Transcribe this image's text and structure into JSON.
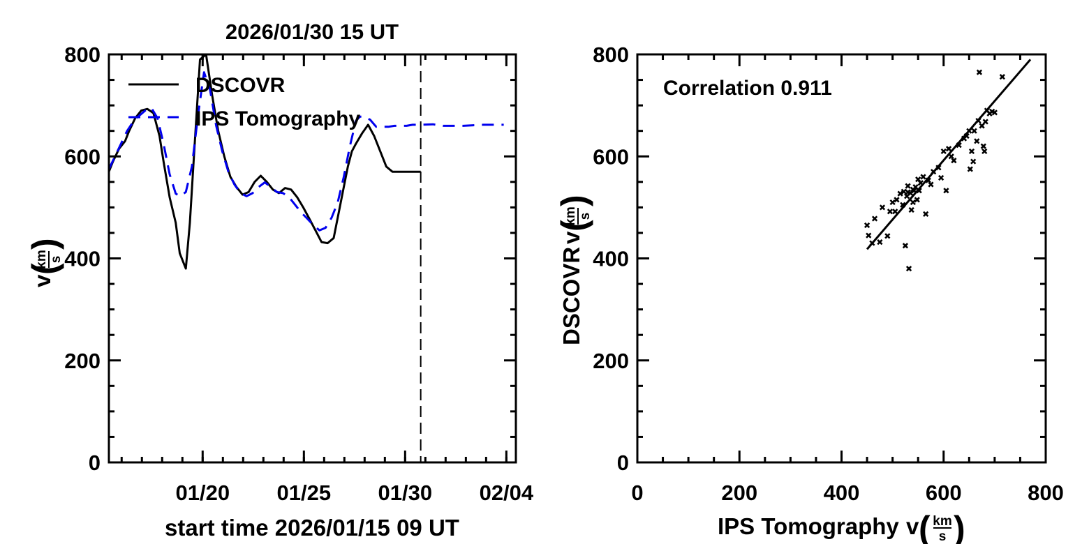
{
  "chart_data": [
    {
      "type": "line",
      "title": "2026/01/30 15 UT",
      "xlabel": "start time 2026/01/15 09 UT",
      "ylabel": "v",
      "ylabel_unit_num": "km",
      "ylabel_unit_den": "s",
      "ylim": [
        0,
        800
      ],
      "xlim_days": [
        0,
        20.1
      ],
      "y_ticks": [
        "0",
        "200",
        "400",
        "600",
        "800"
      ],
      "y_tick_values": [
        0,
        200,
        400,
        600,
        800
      ],
      "x_ticks": [
        "01/20",
        "01/25",
        "01/30",
        "02/04"
      ],
      "x_tick_days": [
        4.63,
        9.63,
        14.63,
        19.63
      ],
      "current_time_day": 15.4,
      "legend": [
        "DSCOVR",
        "IPS Tomography"
      ],
      "colors": {
        "DSCOVR": "#000000",
        "IPS Tomography": "#0000ee"
      },
      "series": [
        {
          "name": "DSCOVR",
          "x": [
            0,
            0.2,
            0.5,
            0.8,
            1.0,
            1.3,
            1.6,
            1.9,
            2.2,
            2.5,
            2.7,
            3.0,
            3.3,
            3.5,
            3.8,
            4.0,
            4.2,
            4.5,
            4.8,
            5.1,
            5.4,
            5.7,
            6.0,
            6.3,
            6.6,
            6.9,
            7.2,
            7.5,
            7.8,
            8.1,
            8.4,
            8.7,
            9.0,
            9.3,
            9.6,
            9.9,
            10.2,
            10.5,
            10.8,
            11.1,
            11.4,
            11.6,
            11.8,
            12.0,
            12.2,
            12.5,
            12.8,
            13.1,
            13.4,
            13.7,
            14.0,
            14.3,
            14.6,
            14.9,
            15.2,
            15.4
          ],
          "y": [
            570,
            590,
            615,
            630,
            650,
            675,
            690,
            693,
            685,
            640,
            590,
            520,
            470,
            410,
            380,
            470,
            600,
            790,
            800,
            720,
            650,
            600,
            560,
            540,
            525,
            530,
            550,
            562,
            550,
            535,
            528,
            538,
            535,
            520,
            500,
            478,
            455,
            432,
            430,
            440,
            500,
            540,
            580,
            610,
            625,
            645,
            662,
            640,
            610,
            580,
            570,
            570,
            570,
            570,
            570,
            570
          ]
        },
        {
          "name": "IPS Tomography",
          "x": [
            0,
            0.3,
            0.6,
            0.9,
            1.2,
            1.5,
            1.8,
            2.1,
            2.4,
            2.7,
            3.0,
            3.3,
            3.5,
            3.8,
            4.1,
            4.4,
            4.7,
            5.0,
            5.3,
            5.6,
            5.9,
            6.2,
            6.5,
            6.8,
            7.1,
            7.4,
            7.7,
            8.0,
            8.3,
            8.6,
            8.9,
            9.2,
            9.5,
            9.8,
            10.1,
            10.4,
            10.7,
            11.0,
            11.3,
            11.6,
            11.9,
            12.2,
            12.4,
            12.6,
            12.9,
            13.2,
            13.5,
            13.8,
            14.1,
            14.4,
            14.7,
            15.0,
            15.4,
            16.0,
            16.5,
            17.0,
            17.5,
            18.0,
            18.5,
            19.0,
            19.5
          ],
          "y": [
            575,
            600,
            625,
            650,
            668,
            680,
            690,
            695,
            675,
            625,
            565,
            527,
            522,
            530,
            580,
            680,
            765,
            730,
            660,
            610,
            570,
            545,
            528,
            522,
            528,
            540,
            549,
            540,
            530,
            528,
            520,
            505,
            490,
            478,
            465,
            455,
            460,
            480,
            510,
            560,
            620,
            670,
            678,
            678,
            672,
            658,
            658,
            658,
            660,
            660,
            660,
            662,
            662,
            663,
            660,
            660,
            660,
            661,
            662,
            662,
            662
          ]
        }
      ]
    },
    {
      "type": "scatter",
      "annotation": "Correlation 0.911",
      "xlabel": "IPS Tomography",
      "ylabel": "DSCOVR",
      "unit_num": "km",
      "unit_den": "s",
      "xlim": [
        0,
        800
      ],
      "ylim": [
        0,
        800
      ],
      "x_ticks": [
        "0",
        "200",
        "400",
        "600",
        "800"
      ],
      "y_ticks": [
        "0",
        "200",
        "400",
        "600",
        "800"
      ],
      "tick_values": [
        0,
        200,
        400,
        600,
        800
      ],
      "fit_line": {
        "x": [
          450,
          770
        ],
        "y": [
          418,
          790
        ]
      },
      "points": {
        "x": [
          450,
          453,
          460,
          465,
          475,
          480,
          490,
          495,
          500,
          505,
          508,
          515,
          520,
          522,
          525,
          528,
          530,
          530,
          532,
          535,
          537,
          540,
          540,
          542,
          545,
          548,
          550,
          552,
          555,
          560,
          565,
          570,
          575,
          580,
          590,
          595,
          600,
          605,
          610,
          615,
          620,
          630,
          640,
          645,
          650,
          652,
          655,
          658,
          660,
          665,
          668,
          670,
          675,
          678,
          680,
          682,
          685,
          690,
          695,
          700,
          715
        ],
        "y": [
          465,
          445,
          430,
          478,
          432,
          500,
          444,
          492,
          510,
          492,
          515,
          527,
          505,
          531,
          425,
          522,
          542,
          530,
          380,
          528,
          495,
          510,
          535,
          533,
          540,
          515,
          555,
          533,
          548,
          560,
          487,
          553,
          545,
          570,
          578,
          558,
          610,
          533,
          615,
          600,
          592,
          622,
          635,
          640,
          650,
          575,
          610,
          590,
          650,
          630,
          670,
          765,
          660,
          620,
          610,
          668,
          690,
          684,
          688,
          686,
          756
        ]
      }
    }
  ]
}
